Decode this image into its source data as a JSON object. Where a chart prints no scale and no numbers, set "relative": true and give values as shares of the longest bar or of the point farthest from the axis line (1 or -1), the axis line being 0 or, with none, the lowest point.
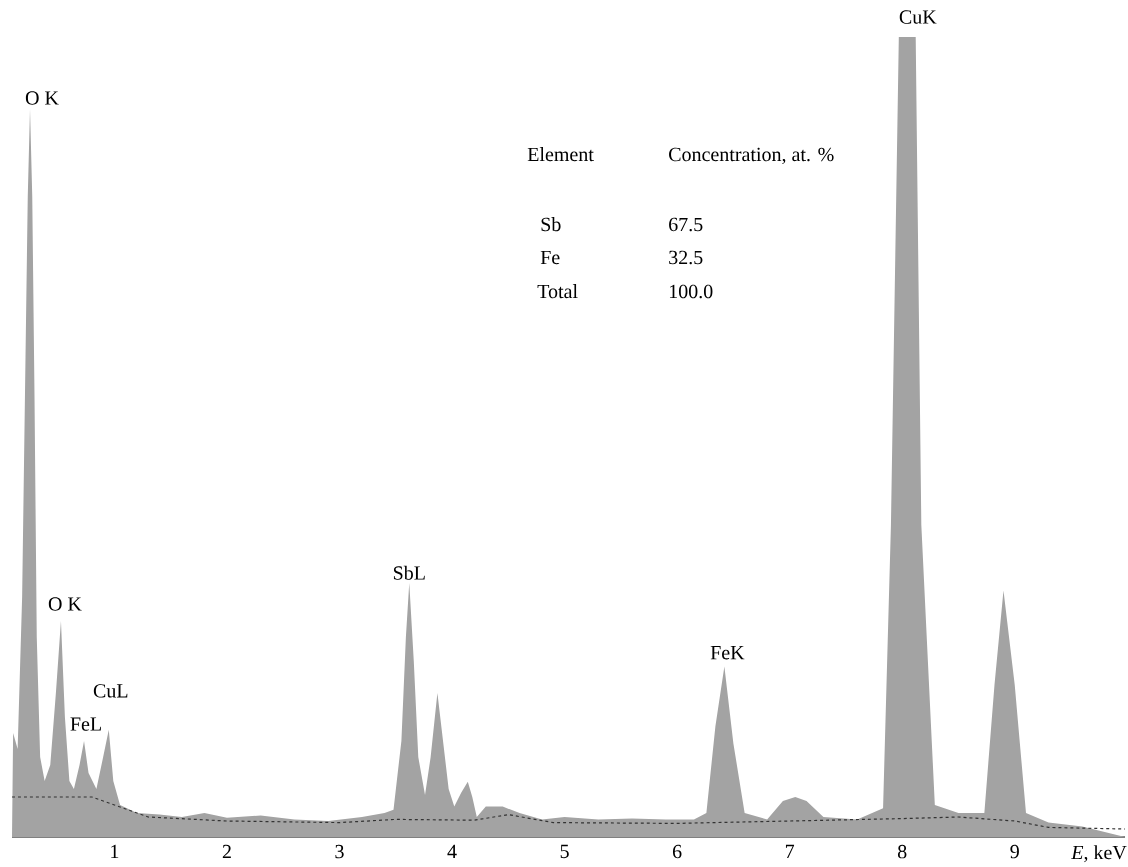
{
  "chart_data": {
    "type": "area",
    "relative": true,
    "xlabel": "*E*, keV",
    "xlim": [
      0.09,
      9.98
    ],
    "xticks": [
      1,
      2,
      3,
      4,
      5,
      6,
      7,
      8,
      9
    ],
    "series": [
      {
        "color": "#a3a3a3",
        "x": [
          0.09,
          0.1,
          0.14,
          0.18,
          0.21,
          0.23,
          0.25,
          0.27,
          0.29,
          0.31,
          0.34,
          0.38,
          0.43,
          0.48,
          0.525,
          0.56,
          0.6,
          0.64,
          0.69,
          0.73,
          0.77,
          0.84,
          0.9,
          0.95,
          0.99,
          1.05,
          1.2,
          1.4,
          1.6,
          1.8,
          2.0,
          2.3,
          2.6,
          2.9,
          3.2,
          3.4,
          3.48,
          3.55,
          3.59,
          3.62,
          3.66,
          3.7,
          3.76,
          3.81,
          3.87,
          3.92,
          3.97,
          4.02,
          4.08,
          4.14,
          4.18,
          4.22,
          4.3,
          4.45,
          4.6,
          4.8,
          5.0,
          5.3,
          5.6,
          5.9,
          6.15,
          6.26,
          6.34,
          6.42,
          6.5,
          6.6,
          6.8,
          6.94,
          7.05,
          7.15,
          7.3,
          7.6,
          7.83,
          7.9,
          7.97,
          8.12,
          8.17,
          8.29,
          8.5,
          8.73,
          8.82,
          8.9,
          9.0,
          9.1,
          9.3,
          9.6,
          9.98
        ],
        "values": [
          0.0,
          0.13,
          0.11,
          0.3,
          0.6,
          0.8,
          0.91,
          0.8,
          0.55,
          0.25,
          0.1,
          0.07,
          0.09,
          0.18,
          0.27,
          0.15,
          0.07,
          0.06,
          0.09,
          0.12,
          0.08,
          0.06,
          0.1,
          0.134,
          0.07,
          0.04,
          0.03,
          0.028,
          0.025,
          0.03,
          0.024,
          0.027,
          0.022,
          0.02,
          0.025,
          0.03,
          0.034,
          0.12,
          0.25,
          0.3175,
          0.22,
          0.1,
          0.0525,
          0.1,
          0.18,
          0.12,
          0.06,
          0.038,
          0.055,
          0.069,
          0.05,
          0.025,
          0.038,
          0.038,
          0.03,
          0.022,
          0.025,
          0.022,
          0.023,
          0.022,
          0.022,
          0.03,
          0.138,
          0.213,
          0.117,
          0.03,
          0.022,
          0.045,
          0.05,
          0.045,
          0.025,
          0.022,
          0.036,
          0.39,
          1.0,
          1.0,
          0.39,
          0.04,
          0.03,
          0.03,
          0.19,
          0.308,
          0.19,
          0.03,
          0.018,
          0.013,
          0.0
        ]
      },
      {
        "type": "line",
        "color": "#333333",
        "line_style": "dashed",
        "x": [
          0.09,
          0.8,
          1.0,
          1.3,
          2.0,
          3.0,
          3.5,
          4.2,
          4.5,
          4.9,
          6.0,
          7.0,
          8.0,
          8.5,
          9.0,
          9.3,
          9.98
        ],
        "values": [
          0.05,
          0.05,
          0.04,
          0.025,
          0.02,
          0.018,
          0.022,
          0.021,
          0.028,
          0.018,
          0.017,
          0.02,
          0.023,
          0.025,
          0.02,
          0.012,
          0.01
        ]
      }
    ],
    "annotations": [
      {
        "text": "O K",
        "x": 0.25,
        "y": 0.91
      },
      {
        "text": "O K",
        "x": 0.525,
        "y": 0.27
      },
      {
        "text": "FeL",
        "x": 0.73,
        "y": 0.12
      },
      {
        "text": "CuL",
        "x": 0.95,
        "y": 0.134
      },
      {
        "text": "SbL",
        "x": 3.62,
        "y": 0.3175
      },
      {
        "text": "FeK",
        "x": 6.42,
        "y": 0.213
      },
      {
        "text": "CuK",
        "x": 8.05,
        "y": 1.0
      },
      "Element",
      "Concentration, at. %",
      "Sb",
      "67.5",
      "Fe",
      "32.5",
      "Total",
      "100.0"
    ]
  }
}
